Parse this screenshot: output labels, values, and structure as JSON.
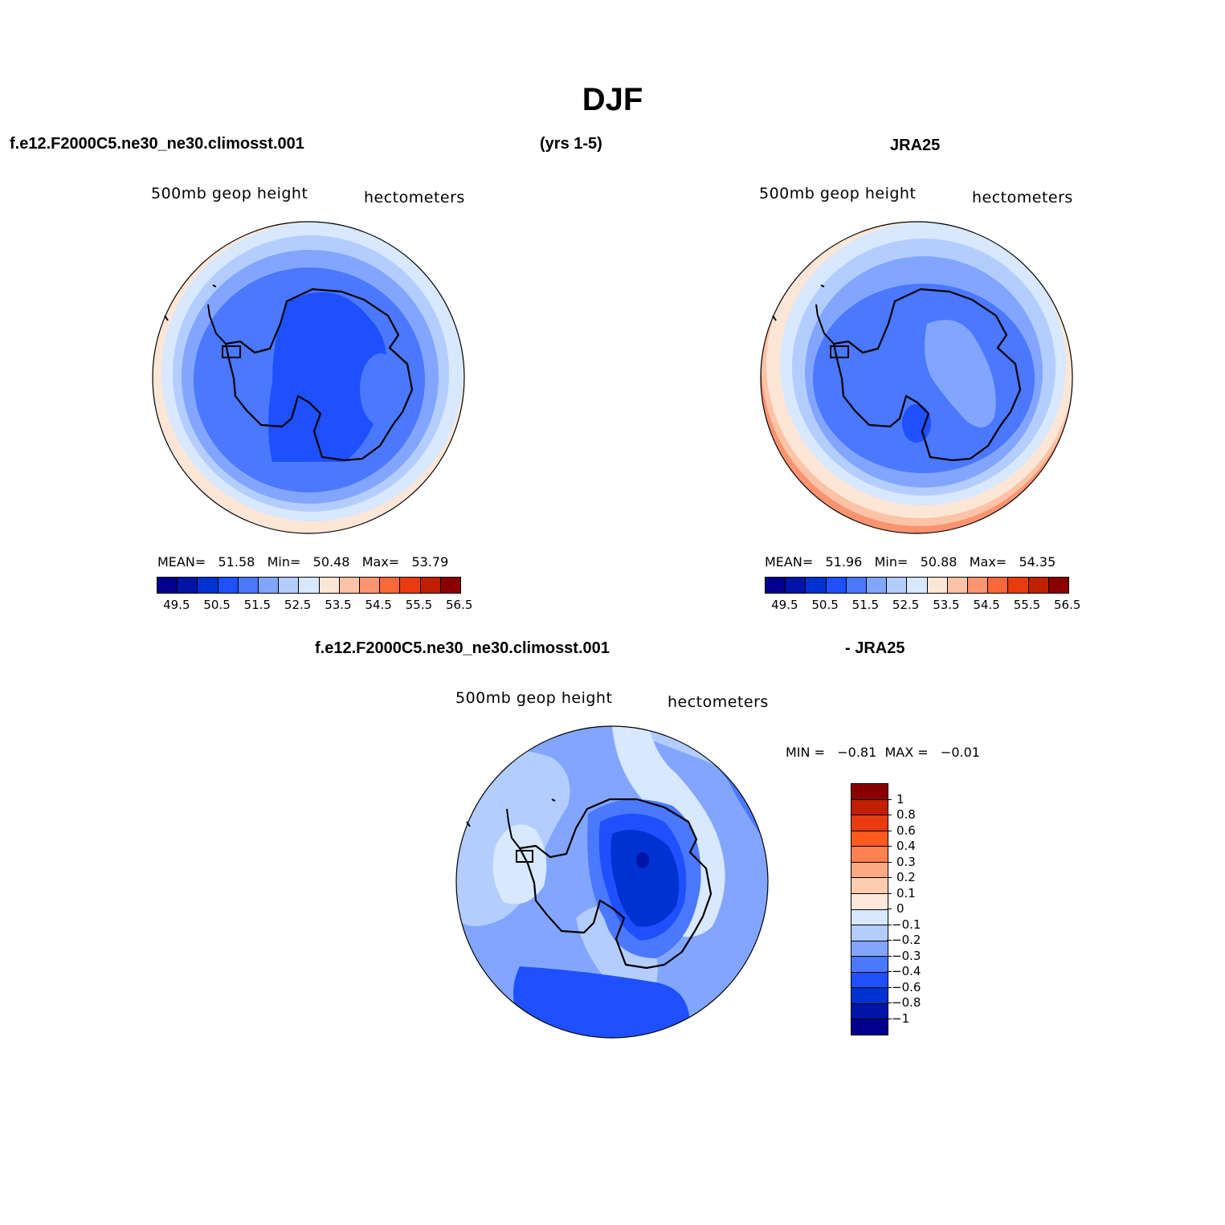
{
  "title": "DJF",
  "headers": {
    "case_name": "f.e12.F2000C5.ne30_ne30.climosst.001",
    "years": "(yrs 1-5)",
    "obs_name": "JRA25",
    "diff_case_name": "f.e12.F2000C5.ne30_ne30.climosst.001",
    "diff_obs": "- JRA25"
  },
  "panels": [
    {
      "variable": "500mb geop height",
      "units": "hectometers",
      "stats": {
        "mean_label": "MEAN=",
        "mean": "51.58",
        "min_label": "Min=",
        "min": "50.48",
        "max_label": "Max=",
        "max": "53.79"
      }
    },
    {
      "variable": "500mb geop height",
      "units": "hectometers",
      "stats": {
        "mean_label": "MEAN=",
        "mean": "51.96",
        "min_label": "Min=",
        "min": "50.88",
        "max_label": "Max=",
        "max": "54.35"
      }
    },
    {
      "variable": "500mb geop height",
      "units": "hectometers",
      "stats": {
        "min_label": "MIN =",
        "min": "−0.81",
        "max_label": "MAX =",
        "max": "−0.01"
      }
    }
  ],
  "colorbar_main": {
    "colors": [
      "#00008c",
      "#0014a8",
      "#0032d2",
      "#1e50ff",
      "#4a78ff",
      "#82a6ff",
      "#b4cdff",
      "#d7e8ff",
      "#fde6d6",
      "#fcc3a6",
      "#fa9470",
      "#f86838",
      "#e83c10",
      "#c02000",
      "#8a0000"
    ],
    "tick_labels": [
      "49.5",
      "50.5",
      "51.5",
      "52.5",
      "53.5",
      "54.5",
      "55.5",
      "56.5"
    ]
  },
  "colorbar_diff": {
    "colors": [
      "#8a0000",
      "#c02000",
      "#e83c10",
      "#ff5a1e",
      "#ff8050",
      "#fca882",
      "#fcccb0",
      "#fde8da",
      "#d7e8ff",
      "#b4cdff",
      "#82a6ff",
      "#4a78ff",
      "#1e50ff",
      "#0032d2",
      "#0014a8",
      "#00008c"
    ],
    "tick_labels": [
      "1",
      "0.8",
      "0.6",
      "0.4",
      "0.3",
      "0.2",
      "0.1",
      "0",
      "−0.1",
      "−0.2",
      "−0.3",
      "−0.4",
      "−0.6",
      "−0.8",
      "−1"
    ]
  }
}
